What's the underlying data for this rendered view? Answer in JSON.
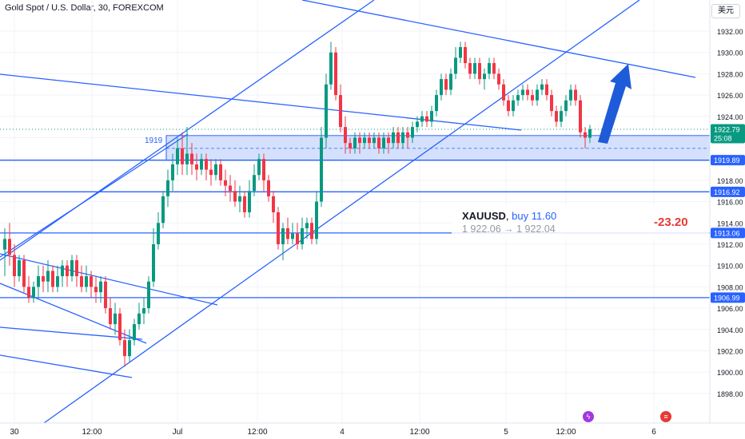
{
  "header": {
    "title": "Gold Spot / U.S. Dollar, 30, FOREXCOM",
    "currency": "美元"
  },
  "chart_data": {
    "type": "candlestick",
    "title": "Gold Spot / U.S. Dollar, 30, FOREXCOM",
    "ylim": [
      1897,
      1934.5
    ],
    "y_ticks": [
      1898,
      1900,
      1902,
      1904,
      1906,
      1908,
      1910,
      1912,
      1914,
      1916,
      1918,
      1920,
      1922,
      1924,
      1926,
      1928,
      1930,
      1932
    ],
    "x_ticks": [
      "30",
      "12:00",
      "Jul",
      "12:00",
      "4",
      "12:00",
      "5",
      "12:00",
      "6"
    ],
    "y_labels": [
      "1898.00",
      "1900.00",
      "1902.00",
      "1904.00",
      "1906.00",
      "1908.00",
      "1910.00",
      "1912.00",
      "1914.00",
      "1916.00",
      "1918.00",
      "1920.00",
      "1922.00",
      "1924.00",
      "1926.00",
      "1928.00",
      "1930.00",
      "1932.00"
    ],
    "price_tags": [
      {
        "label": "1922.79",
        "sub": "25:08",
        "value": 1922.79,
        "color": "#089981"
      },
      {
        "label": "1919.89",
        "value": 1919.89,
        "color": "#2962ff"
      },
      {
        "label": "1916.92",
        "value": 1916.92,
        "color": "#2962ff"
      },
      {
        "label": "1913.06",
        "value": 1913.06,
        "color": "#2962ff"
      },
      {
        "label": "1906.99",
        "value": 1906.99,
        "color": "#2962ff"
      }
    ],
    "zone_label": "1919",
    "trade": {
      "symbol": "XAUUSD",
      "side": "buy 11.60",
      "route": "1 922.06 → 1 922.04",
      "pnl": "-23.20"
    },
    "colors": {
      "up": "#089981",
      "down": "#f23645",
      "line": "#2962ff",
      "zone": "#c3d4fb"
    }
  }
}
